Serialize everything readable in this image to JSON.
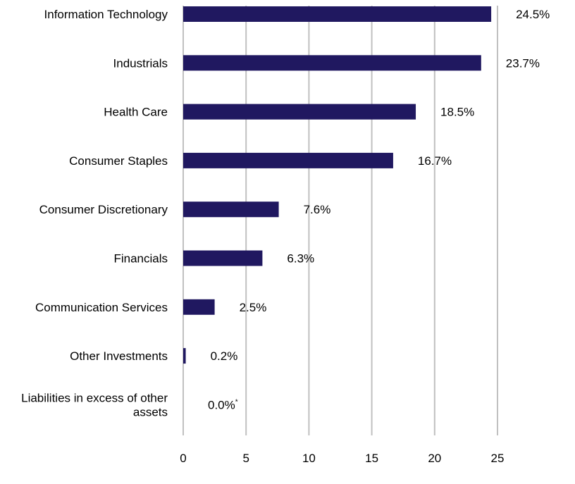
{
  "chart_data": {
    "type": "bar",
    "orientation": "horizontal",
    "categories": [
      "Information Technology",
      "Industrials",
      "Health Care",
      "Consumer Staples",
      "Consumer Discretionary",
      "Financials",
      "Communication Services",
      "Other Investments",
      "Liabilities in excess of other assets"
    ],
    "values": [
      24.5,
      23.7,
      18.5,
      16.7,
      7.6,
      6.3,
      2.5,
      0.2,
      0.0
    ],
    "data_labels": [
      "24.5%",
      "23.7%",
      "18.5%",
      "16.7%",
      "7.6%",
      "6.3%",
      "2.5%",
      "0.2%",
      "0.0%"
    ],
    "data_label_footnotes": [
      "",
      "",
      "",
      "",
      "",
      "",
      "",
      "",
      "*"
    ],
    "xticks": [
      0,
      5,
      10,
      15,
      20,
      25
    ],
    "xlim": [
      0,
      25
    ],
    "grid": true,
    "legend": "none",
    "title": "",
    "xlabel": "",
    "ylabel": "",
    "colors": {
      "bar": "#201860",
      "grid": "#c0c0c0"
    }
  }
}
